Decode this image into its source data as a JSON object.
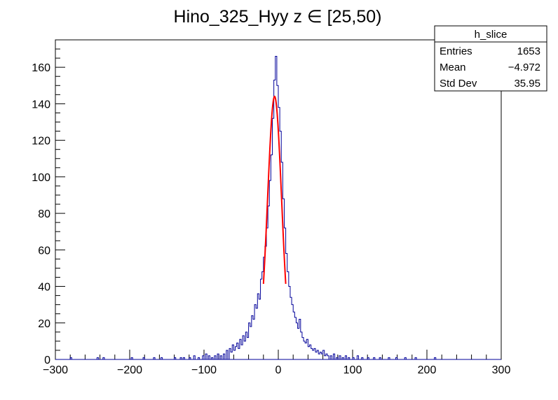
{
  "chart_data": {
    "type": "histogram",
    "title_main": "Hino_325_Hyy z ",
    "title_symbol": "∈",
    "title_range": " [25,50)",
    "xlim": [
      -300,
      300
    ],
    "ylim": [
      0,
      175
    ],
    "x_ticks": [
      -300,
      -200,
      -100,
      0,
      100,
      200,
      300
    ],
    "x_tick_labels": [
      "−300",
      "−200",
      "−100",
      "0",
      "100",
      "200",
      "300"
    ],
    "y_ticks": [
      0,
      20,
      40,
      60,
      80,
      100,
      120,
      140,
      160
    ],
    "y_tick_labels": [
      "0",
      "20",
      "40",
      "60",
      "80",
      "100",
      "120",
      "140",
      "160"
    ],
    "grid": false,
    "legend": "none",
    "histogram": {
      "color": "#000099",
      "bin_width": 2,
      "nonzero_bins": [
        [
          -280,
          1
        ],
        [
          -275,
          1
        ],
        [
          -244,
          1
        ],
        [
          -236,
          1
        ],
        [
          -215,
          1
        ],
        [
          -198,
          1
        ],
        [
          -182,
          1
        ],
        [
          -168,
          1
        ],
        [
          -158,
          1
        ],
        [
          -140,
          1
        ],
        [
          -132,
          1
        ],
        [
          -128,
          1
        ],
        [
          -120,
          1
        ],
        [
          -114,
          2
        ],
        [
          -108,
          1
        ],
        [
          -102,
          2
        ],
        [
          -98,
          3
        ],
        [
          -94,
          2
        ],
        [
          -90,
          1
        ],
        [
          -86,
          2
        ],
        [
          -82,
          3
        ],
        [
          -78,
          2
        ],
        [
          -74,
          3
        ],
        [
          -70,
          5
        ],
        [
          -66,
          6
        ],
        [
          -64,
          4
        ],
        [
          -62,
          8
        ],
        [
          -60,
          5
        ],
        [
          -58,
          7
        ],
        [
          -56,
          9
        ],
        [
          -54,
          6
        ],
        [
          -52,
          11
        ],
        [
          -50,
          8
        ],
        [
          -48,
          13
        ],
        [
          -46,
          10
        ],
        [
          -44,
          15
        ],
        [
          -42,
          12
        ],
        [
          -40,
          20
        ],
        [
          -38,
          18
        ],
        [
          -36,
          24
        ],
        [
          -34,
          22
        ],
        [
          -32,
          30
        ],
        [
          -30,
          28
        ],
        [
          -28,
          36
        ],
        [
          -26,
          33
        ],
        [
          -24,
          44
        ],
        [
          -22,
          48
        ],
        [
          -20,
          56
        ],
        [
          -18,
          62
        ],
        [
          -16,
          72
        ],
        [
          -14,
          84
        ],
        [
          -12,
          98
        ],
        [
          -10,
          112
        ],
        [
          -8,
          132
        ],
        [
          -6,
          153
        ],
        [
          -4,
          166
        ],
        [
          -2,
          150
        ],
        [
          0,
          138
        ],
        [
          2,
          125
        ],
        [
          4,
          108
        ],
        [
          6,
          88
        ],
        [
          8,
          72
        ],
        [
          10,
          58
        ],
        [
          12,
          48
        ],
        [
          14,
          40
        ],
        [
          16,
          34
        ],
        [
          18,
          30
        ],
        [
          20,
          26
        ],
        [
          22,
          23
        ],
        [
          24,
          20
        ],
        [
          26,
          17
        ],
        [
          28,
          22
        ],
        [
          30,
          15
        ],
        [
          32,
          12
        ],
        [
          34,
          10
        ],
        [
          36,
          9
        ],
        [
          38,
          11
        ],
        [
          40,
          7
        ],
        [
          42,
          8
        ],
        [
          44,
          6
        ],
        [
          46,
          5
        ],
        [
          48,
          6
        ],
        [
          50,
          4
        ],
        [
          52,
          5
        ],
        [
          54,
          3
        ],
        [
          56,
          4
        ],
        [
          58,
          3
        ],
        [
          60,
          5
        ],
        [
          62,
          2
        ],
        [
          64,
          3
        ],
        [
          66,
          2
        ],
        [
          70,
          2
        ],
        [
          74,
          3
        ],
        [
          78,
          1
        ],
        [
          82,
          2
        ],
        [
          86,
          1
        ],
        [
          90,
          2
        ],
        [
          94,
          1
        ],
        [
          100,
          1
        ],
        [
          106,
          2
        ],
        [
          112,
          1
        ],
        [
          120,
          1
        ],
        [
          128,
          1
        ],
        [
          136,
          1
        ],
        [
          148,
          1
        ],
        [
          158,
          1
        ],
        [
          170,
          1
        ],
        [
          184,
          1
        ],
        [
          210,
          1
        ],
        [
          265,
          1
        ]
      ]
    },
    "fit": {
      "color": "#ff0000",
      "function": "gaus",
      "amplitude": 144,
      "mean": -5,
      "sigma": 9.5,
      "range": [
        -20,
        10
      ]
    },
    "stats": {
      "title": "h_slice",
      "rows": [
        {
          "label": "Entries",
          "value": "1653"
        },
        {
          "label": "Mean",
          "value": "−4.972"
        },
        {
          "label": "Std Dev",
          "value": "35.95"
        }
      ]
    }
  }
}
